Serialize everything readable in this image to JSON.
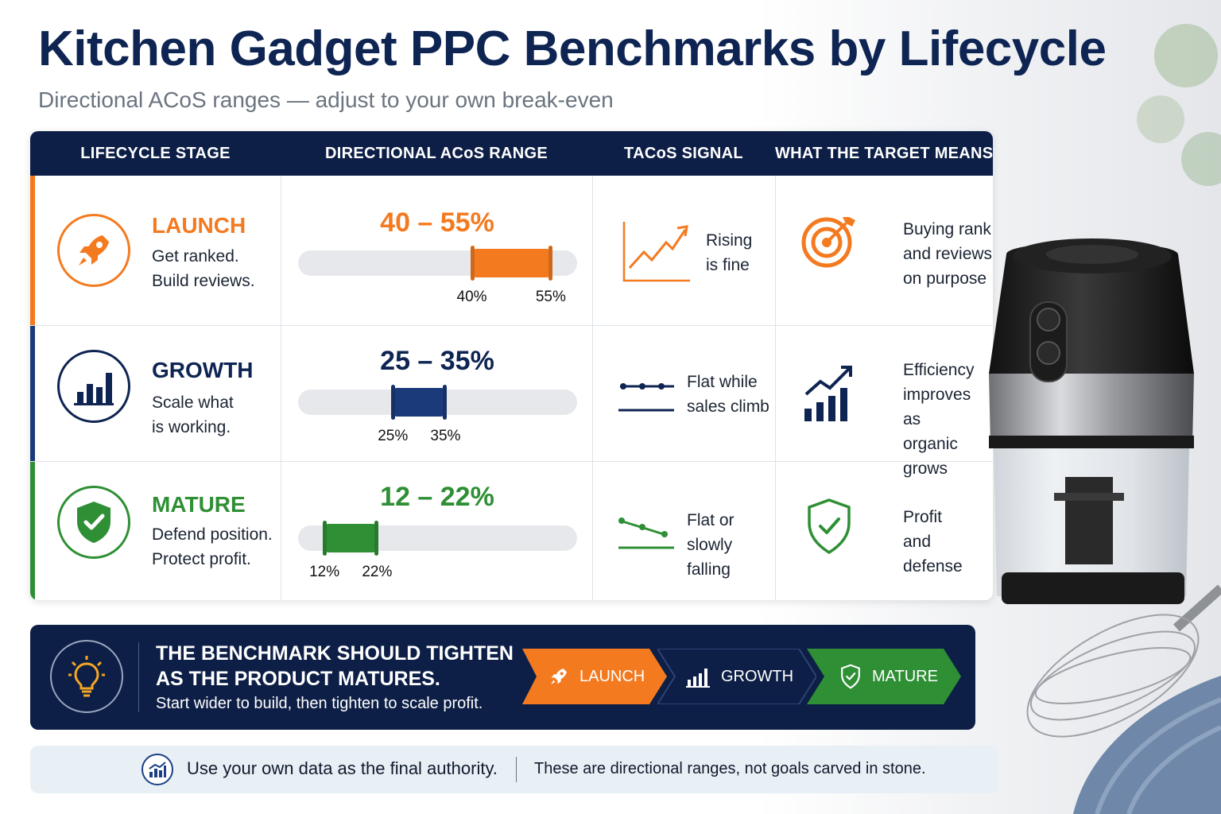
{
  "title": "Kitchen Gadget PPC Benchmarks by Lifecycle",
  "subtitle": "Directional ACoS ranges — adjust to your own break-even",
  "table": {
    "headers": [
      "LIFECYCLE STAGE",
      "DIRECTIONAL ACoS RANGE",
      "TACoS SIGNAL",
      "WHAT THE TARGET MEANS"
    ],
    "rows": [
      {
        "stage": "LAUNCH",
        "desc_line1": "Get ranked.",
        "desc_line2": "Build reviews.",
        "range_label": "40 – 55%",
        "min": 40,
        "max": 55,
        "min_label": "40%",
        "max_label": "55%",
        "signal_line1": "Rising",
        "signal_line2": "is fine",
        "meaning_line1": "Buying rank",
        "meaning_line2": "and reviews",
        "meaning_line3": "on purpose",
        "color": "#f47a20",
        "icon": "rocket-icon"
      },
      {
        "stage": "GROWTH",
        "desc_line1": "Scale what",
        "desc_line2": "is working.",
        "range_label": "25 – 35%",
        "min": 25,
        "max": 35,
        "min_label": "25%",
        "max_label": "35%",
        "signal_line1": "Flat while",
        "signal_line2": "sales climb",
        "meaning_line1": "Efficiency",
        "meaning_line2": "improves as",
        "meaning_line3": "organic grows",
        "color": "#1b3a7a",
        "icon": "bar-chart-icon"
      },
      {
        "stage": "MATURE",
        "desc_line1": "Defend position.",
        "desc_line2": "Protect profit.",
        "range_label": "12 – 22%",
        "min": 12,
        "max": 22,
        "min_label": "12%",
        "max_label": "22%",
        "signal_line1": "Flat or",
        "signal_line2": "slowly falling",
        "meaning_line1": "Profit",
        "meaning_line2": "and defense",
        "color": "#2f8f35",
        "icon": "shield-check-icon"
      }
    ]
  },
  "banner": {
    "heading_line1": "THE BENCHMARK SHOULD TIGHTEN",
    "heading_line2": "AS THE PRODUCT MATURES.",
    "sub": "Start wider to build, then tighten to scale profit.",
    "steps": [
      "LAUNCH",
      "GROWTH",
      "MATURE"
    ]
  },
  "footer": {
    "left": "Use your own data as the final authority.",
    "right": "These are directional ranges, not goals carved in stone."
  }
}
